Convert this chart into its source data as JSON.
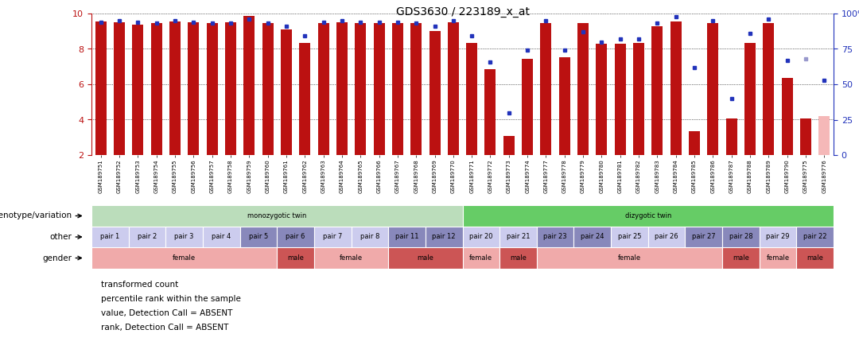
{
  "title": "GDS3630 / 223189_x_at",
  "samples": [
    "GSM189751",
    "GSM189752",
    "GSM189753",
    "GSM189754",
    "GSM189755",
    "GSM189756",
    "GSM189757",
    "GSM189758",
    "GSM189759",
    "GSM189760",
    "GSM189761",
    "GSM189762",
    "GSM189763",
    "GSM189764",
    "GSM189765",
    "GSM189766",
    "GSM189767",
    "GSM189768",
    "GSM189769",
    "GSM189770",
    "GSM189771",
    "GSM189772",
    "GSM189773",
    "GSM189774",
    "GSM189777",
    "GSM189778",
    "GSM189779",
    "GSM189780",
    "GSM189781",
    "GSM189782",
    "GSM189783",
    "GSM189784",
    "GSM189785",
    "GSM189786",
    "GSM189787",
    "GSM189788",
    "GSM189789",
    "GSM189790",
    "GSM189775",
    "GSM189776"
  ],
  "red_values": [
    9.55,
    9.5,
    9.35,
    9.45,
    9.55,
    9.5,
    9.45,
    9.5,
    9.85,
    9.45,
    9.1,
    8.35,
    9.45,
    9.5,
    9.45,
    9.45,
    9.45,
    9.45,
    9.0,
    9.5,
    8.35,
    6.85,
    3.1,
    7.45,
    9.45,
    7.55,
    9.45,
    8.3,
    8.3,
    8.35,
    9.3,
    9.55,
    3.35,
    9.45,
    4.05,
    8.35,
    9.45,
    6.35,
    4.05,
    4.2
  ],
  "blue_values": [
    94,
    95,
    94,
    93,
    95,
    94,
    93,
    93,
    96,
    93,
    91,
    84,
    94,
    95,
    94,
    94,
    94,
    93,
    91,
    95,
    84,
    66,
    30,
    74,
    95,
    74,
    87,
    80,
    82,
    82,
    93,
    98,
    62,
    95,
    40,
    86,
    96,
    67,
    68,
    53
  ],
  "absent_red_indices": [
    39
  ],
  "absent_blue_indices": [
    38
  ],
  "ylim_left": [
    2,
    10
  ],
  "ylim_right": [
    0,
    100
  ],
  "yticks_left": [
    2,
    4,
    6,
    8,
    10
  ],
  "yticks_right": [
    0,
    25,
    50,
    75,
    100
  ],
  "ytick_right_labels": [
    "0",
    "25",
    "50",
    "75",
    "100%"
  ],
  "bar_color": "#bb1111",
  "bar_absent_color": "#f5b8b8",
  "dot_color": "#2233bb",
  "dot_absent_color": "#9999cc",
  "bg_color": "#ffffff",
  "left_axis_color": "#bb1111",
  "right_axis_color": "#2233bb",
  "genotype_groups": [
    {
      "label": "monozygotic twin",
      "start": 0,
      "end": 19,
      "color": "#bbddbb"
    },
    {
      "label": "dizygotic twin",
      "start": 20,
      "end": 39,
      "color": "#66cc66"
    }
  ],
  "pair_groups": [
    {
      "label": "pair 1",
      "start": 0,
      "end": 1,
      "color": "#ccccee"
    },
    {
      "label": "pair 2",
      "start": 2,
      "end": 3,
      "color": "#ccccee"
    },
    {
      "label": "pair 3",
      "start": 4,
      "end": 5,
      "color": "#ccccee"
    },
    {
      "label": "pair 4",
      "start": 6,
      "end": 7,
      "color": "#ccccee"
    },
    {
      "label": "pair 5",
      "start": 8,
      "end": 9,
      "color": "#8888bb"
    },
    {
      "label": "pair 6",
      "start": 10,
      "end": 11,
      "color": "#8888bb"
    },
    {
      "label": "pair 7",
      "start": 12,
      "end": 13,
      "color": "#ccccee"
    },
    {
      "label": "pair 8",
      "start": 14,
      "end": 15,
      "color": "#ccccee"
    },
    {
      "label": "pair 11",
      "start": 16,
      "end": 17,
      "color": "#8888bb"
    },
    {
      "label": "pair 12",
      "start": 18,
      "end": 19,
      "color": "#8888bb"
    },
    {
      "label": "pair 20",
      "start": 20,
      "end": 21,
      "color": "#ccccee"
    },
    {
      "label": "pair 21",
      "start": 22,
      "end": 23,
      "color": "#ccccee"
    },
    {
      "label": "pair 23",
      "start": 24,
      "end": 25,
      "color": "#8888bb"
    },
    {
      "label": "pair 24",
      "start": 26,
      "end": 27,
      "color": "#8888bb"
    },
    {
      "label": "pair 25",
      "start": 28,
      "end": 29,
      "color": "#ccccee"
    },
    {
      "label": "pair 26",
      "start": 30,
      "end": 31,
      "color": "#ccccee"
    },
    {
      "label": "pair 27",
      "start": 32,
      "end": 33,
      "color": "#8888bb"
    },
    {
      "label": "pair 28",
      "start": 34,
      "end": 35,
      "color": "#8888bb"
    },
    {
      "label": "pair 29",
      "start": 36,
      "end": 37,
      "color": "#ccccee"
    },
    {
      "label": "pair 22",
      "start": 38,
      "end": 39,
      "color": "#8888bb"
    }
  ],
  "gender_groups": [
    {
      "label": "female",
      "start": 0,
      "end": 9,
      "color": "#f0aaaa"
    },
    {
      "label": "male",
      "start": 10,
      "end": 11,
      "color": "#cc5555"
    },
    {
      "label": "female",
      "start": 12,
      "end": 15,
      "color": "#f0aaaa"
    },
    {
      "label": "male",
      "start": 16,
      "end": 19,
      "color": "#cc5555"
    },
    {
      "label": "female",
      "start": 20,
      "end": 21,
      "color": "#f0aaaa"
    },
    {
      "label": "male",
      "start": 22,
      "end": 23,
      "color": "#cc5555"
    },
    {
      "label": "female",
      "start": 24,
      "end": 33,
      "color": "#f0aaaa"
    },
    {
      "label": "male",
      "start": 34,
      "end": 35,
      "color": "#cc5555"
    },
    {
      "label": "female",
      "start": 36,
      "end": 37,
      "color": "#f0aaaa"
    },
    {
      "label": "male",
      "start": 38,
      "end": 39,
      "color": "#cc5555"
    }
  ],
  "row_labels": [
    "genotype/variation",
    "other",
    "gender"
  ],
  "legend_items": [
    {
      "color": "#bb1111",
      "label": "transformed count"
    },
    {
      "color": "#2233bb",
      "label": "percentile rank within the sample"
    },
    {
      "color": "#f5b8b8",
      "label": "value, Detection Call = ABSENT"
    },
    {
      "color": "#9999cc",
      "label": "rank, Detection Call = ABSENT"
    }
  ]
}
